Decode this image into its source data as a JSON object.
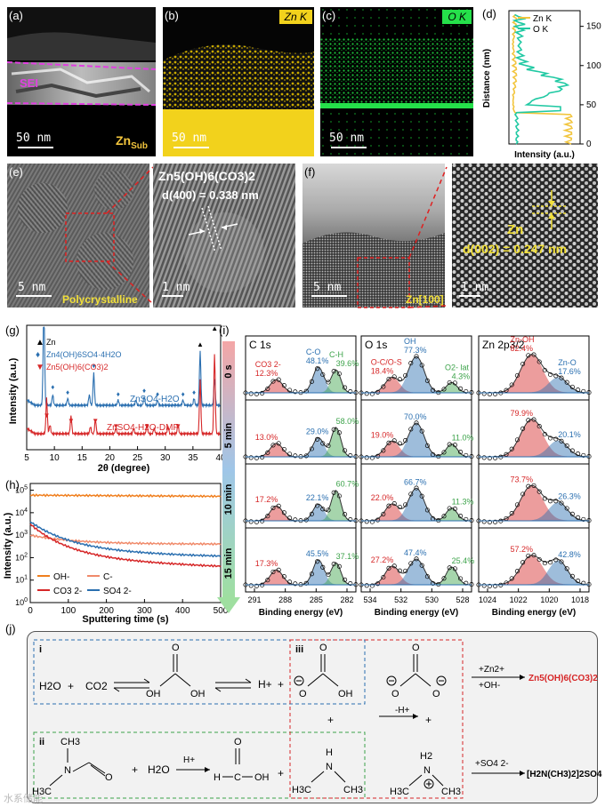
{
  "panel_a": {
    "label": "(a)",
    "sei": "SEI",
    "scale": "50 nm",
    "sub": "Zn",
    "sub_sub": "Sub"
  },
  "panel_b": {
    "label": "(b)",
    "tag": "Zn K",
    "scale": "50 nm"
  },
  "panel_c": {
    "label": "(c)",
    "tag": "O K",
    "scale": "50 nm"
  },
  "panel_e": {
    "label": "(e)",
    "scale1": "5 nm",
    "tag1": "Polycrystalline",
    "formula": "Zn5(OH)6(CO3)2",
    "d": "d(400) = 0.338 nm",
    "scale2": "1 nm"
  },
  "panel_f": {
    "label": "(f)",
    "scale1": "5 nm",
    "tag1": "Zn[100]",
    "zn": "Zn",
    "d": "d(002) = 0.247 nm",
    "scale2": "1 nm"
  },
  "colors": {
    "zn": "#f2c53d",
    "o": "#20c9a3",
    "red": "#d62728",
    "blue": "#2a6fb0",
    "green": "#3ca34a",
    "orange": "#f07f1e"
  },
  "chart_data": [
    {
      "id": "d",
      "type": "line",
      "label": "(d)",
      "xlabel": "Intensity (a.u.)",
      "ylabel": "Distance (nm)",
      "ylim": [
        0,
        170
      ],
      "yticks": [
        0,
        50,
        100,
        150
      ],
      "series": [
        {
          "name": "Zn K",
          "color": "#f2c53d"
        },
        {
          "name": "O K",
          "color": "#20c9a3"
        }
      ]
    },
    {
      "id": "g",
      "type": "line",
      "label": "(g)",
      "xlabel": "2θ (degree)",
      "ylabel": "Intensity (a.u.)",
      "xlim": [
        5,
        40
      ],
      "xticks": [
        5,
        10,
        15,
        20,
        25,
        30,
        35,
        40
      ],
      "legend": [
        "Zn",
        "Zn4(OH)6SO4·4H2O",
        "Zn5(OH)6(CO3)2"
      ],
      "series": [
        {
          "name": "ZnSO4-H2O",
          "color": "#2a6fb0"
        },
        {
          "name": "ZnSO4-H2O-DMF",
          "color": "#d62728"
        }
      ]
    },
    {
      "id": "h",
      "type": "line",
      "label": "(h)",
      "xlabel": "Sputtering time (s)",
      "ylabel": "Intensity (a.u.)",
      "xlim": [
        0,
        500
      ],
      "xticks": [
        0,
        100,
        200,
        300,
        400,
        500
      ],
      "yticks": [
        "10^0",
        "10^1",
        "10^2",
        "10^3",
        "10^4",
        "10^5"
      ],
      "series": [
        {
          "name": "OH-",
          "color": "#f07f1e"
        },
        {
          "name": "C-",
          "color": "#f08a6a"
        },
        {
          "name": "CO3 2-",
          "color": "#d62728"
        },
        {
          "name": "SO4 2-",
          "color": "#2a6fb0"
        }
      ]
    },
    {
      "id": "i",
      "type": "area",
      "label": "(i)",
      "xlabel": "Binding energy (eV)",
      "rows": [
        "0 s",
        "5 min",
        "10 min",
        "15 min"
      ],
      "columns": [
        {
          "title": "C 1s",
          "xticks": [
            "291",
            "288",
            "285",
            "282"
          ],
          "peaks": [
            "CO3 2-",
            "C-O",
            "C-H"
          ],
          "values": [
            [
              "12.3%",
              "48.1%",
              "39.6%"
            ],
            [
              "13.0%",
              "29.0%",
              "58.0%"
            ],
            [
              "17.2%",
              "22.1%",
              "60.7%"
            ],
            [
              "17.3%",
              "45.5%",
              "37.1%"
            ]
          ]
        },
        {
          "title": "O 1s",
          "xticks": [
            "534",
            "532",
            "530",
            "528"
          ],
          "peaks": [
            "O-C/O-S",
            "OH",
            "O2- lat"
          ],
          "values": [
            [
              "18.4%",
              "77.3%",
              "4.3%"
            ],
            [
              "19.0%",
              "70.0%",
              "11.0%"
            ],
            [
              "22.0%",
              "66.7%",
              "11.3%"
            ],
            [
              "27.2%",
              "47.4%",
              "25.4%"
            ]
          ]
        },
        {
          "title": "Zn 2p3/2",
          "xticks": [
            "1024",
            "1022",
            "1020",
            "1018"
          ],
          "peaks": [
            "Zn-OH",
            "Zn-O"
          ],
          "values": [
            [
              "82.4%",
              "17.6%"
            ],
            [
              "79.9%",
              "20.1%"
            ],
            [
              "73.7%",
              "26.3%"
            ],
            [
              "57.2%",
              "42.8%"
            ]
          ]
        }
      ]
    }
  ],
  "panel_j": {
    "label": "(j)",
    "box_i": "i",
    "box_ii": "ii",
    "box_iii": "iii",
    "h2o": "H2O",
    "plus": "+",
    "co2": "CO2",
    "hplus": "H+",
    "zn2": "+Zn2+",
    "ohm": "+OH-",
    "product1": "Zn5(OH)6(CO3)2",
    "minus_h": "-H+",
    "so4": "+SO4 2-",
    "product2": "[H2N(CH3)2]2SO4",
    "ch3": "CH3",
    "h3c": "H3C",
    "h2": "H2",
    "oh": "OH",
    "o": "O",
    "h": "H",
    "n": "N",
    "c": "C"
  },
  "watermark": "水系储能"
}
